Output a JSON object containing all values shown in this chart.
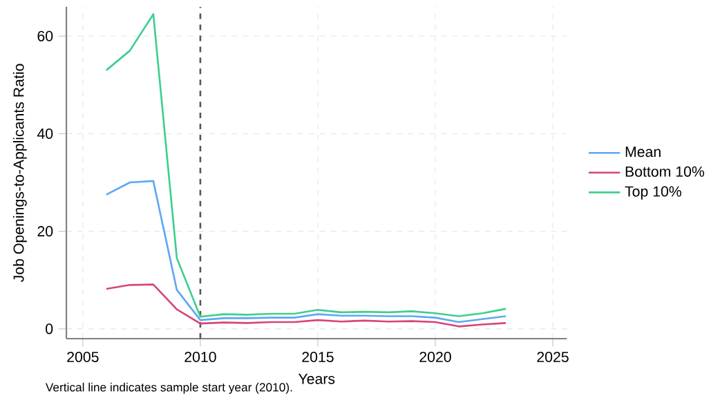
{
  "chart_data": {
    "type": "line",
    "xlabel": "Years",
    "ylabel": "Job Openings-to-Applicants Ratio",
    "x": [
      2006,
      2007,
      2008,
      2009,
      2010,
      2011,
      2012,
      2013,
      2014,
      2015,
      2016,
      2017,
      2018,
      2019,
      2020,
      2021,
      2022,
      2023
    ],
    "series": [
      {
        "name": "Mean",
        "color": "#5ea8f2",
        "values": [
          27.5,
          30,
          30.3,
          8,
          1.8,
          2.2,
          2.2,
          2.3,
          2.3,
          3.0,
          2.7,
          2.7,
          2.6,
          2.6,
          2.3,
          1.4,
          2.0,
          2.6
        ]
      },
      {
        "name": "Bottom 10%",
        "color": "#d6457a",
        "values": [
          8.2,
          9,
          9.1,
          4,
          1.1,
          1.3,
          1.2,
          1.4,
          1.4,
          1.8,
          1.5,
          1.7,
          1.5,
          1.6,
          1.4,
          0.5,
          0.9,
          1.2
        ]
      },
      {
        "name": "Top 10%",
        "color": "#3ecf8e",
        "values": [
          53,
          57,
          64.5,
          14.5,
          2.5,
          3.0,
          2.9,
          3.1,
          3.1,
          3.9,
          3.4,
          3.5,
          3.4,
          3.6,
          3.2,
          2.6,
          3.2,
          4.1
        ]
      }
    ],
    "xlim": [
      2004.3,
      2025.6
    ],
    "ylim": [
      -2,
      66
    ],
    "xticks": [
      2005,
      2010,
      2015,
      2020,
      2025
    ],
    "yticks": [
      0,
      20,
      40,
      60
    ],
    "grid": true,
    "legend": "right",
    "line_style": "solid",
    "marker": "none",
    "ref_lines": [
      {
        "axis": "x",
        "value": 2010,
        "color": "#555555",
        "line_style": "dashed"
      }
    ],
    "annotations": [
      "Vertical line indicates sample start year (2010)."
    ]
  }
}
